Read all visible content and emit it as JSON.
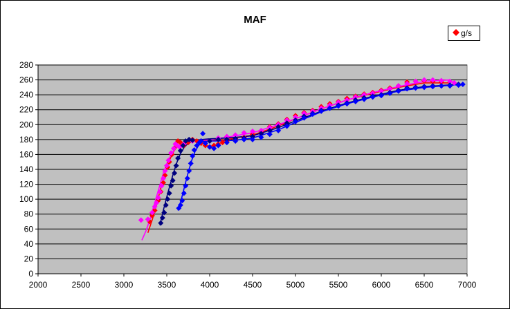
{
  "chart_data": {
    "type": "scatter",
    "title": "MAF",
    "xlabel": "",
    "ylabel": "",
    "xlim": [
      2000,
      7000
    ],
    "ylim": [
      0,
      280
    ],
    "xticks": [
      2000,
      2500,
      3000,
      3500,
      4000,
      4500,
      5000,
      5500,
      6000,
      6500,
      7000
    ],
    "yticks": [
      0,
      20,
      40,
      60,
      80,
      100,
      120,
      140,
      160,
      180,
      200,
      220,
      240,
      260,
      280
    ],
    "grid": "horizontal",
    "legend": {
      "position": "top-right",
      "entries": [
        "g/s"
      ]
    },
    "colors": {
      "plot_background": "#c0c0c0",
      "red": "#ff0000",
      "magenta": "#ff00ff",
      "navy": "#000080",
      "blue": "#0000ff"
    },
    "series": [
      {
        "name": "g/s",
        "color": "#ff0000",
        "points": [
          [
            3300,
            70
          ],
          [
            3330,
            78
          ],
          [
            3360,
            85
          ],
          [
            3400,
            98
          ],
          [
            3430,
            110
          ],
          [
            3460,
            122
          ],
          [
            3480,
            132
          ],
          [
            3510,
            143
          ],
          [
            3530,
            150
          ],
          [
            3560,
            160
          ],
          [
            3600,
            170
          ],
          [
            3630,
            178
          ],
          [
            3660,
            176
          ],
          [
            3700,
            172
          ],
          [
            3750,
            176
          ],
          [
            3800,
            180
          ],
          [
            3850,
            178
          ],
          [
            3900,
            175
          ],
          [
            3950,
            172
          ],
          [
            4000,
            170
          ],
          [
            4050,
            172
          ],
          [
            4100,
            174
          ],
          [
            4150,
            176
          ],
          [
            4200,
            178
          ],
          [
            4300,
            180
          ],
          [
            4400,
            183
          ],
          [
            4500,
            187
          ],
          [
            4600,
            191
          ],
          [
            4700,
            197
          ],
          [
            4800,
            201
          ],
          [
            4900,
            207
          ],
          [
            5000,
            212
          ],
          [
            5100,
            216
          ],
          [
            5200,
            219
          ],
          [
            5300,
            224
          ],
          [
            5400,
            228
          ],
          [
            5500,
            231
          ],
          [
            5600,
            235
          ],
          [
            5700,
            238
          ],
          [
            5800,
            241
          ],
          [
            5900,
            243
          ],
          [
            6000,
            246
          ],
          [
            6100,
            249
          ],
          [
            6200,
            252
          ],
          [
            6300,
            257
          ],
          [
            6400,
            258
          ],
          [
            6500,
            259
          ],
          [
            6600,
            258
          ],
          [
            6700,
            257
          ]
        ]
      },
      {
        "color": "#ff00ff",
        "points": [
          [
            3200,
            72
          ],
          [
            3280,
            73
          ],
          [
            3330,
            82
          ],
          [
            3360,
            90
          ],
          [
            3380,
            95
          ],
          [
            3400,
            102
          ],
          [
            3420,
            110
          ],
          [
            3440,
            118
          ],
          [
            3460,
            128
          ],
          [
            3480,
            138
          ],
          [
            3500,
            145
          ],
          [
            3520,
            152
          ],
          [
            3550,
            162
          ],
          [
            3580,
            168
          ],
          [
            3600,
            174
          ],
          [
            3620,
            172
          ],
          [
            3650,
            170
          ],
          [
            3700,
            174
          ],
          [
            3800,
            178
          ],
          [
            3900,
            178
          ],
          [
            4000,
            178
          ],
          [
            4100,
            182
          ],
          [
            4200,
            184
          ],
          [
            4300,
            186
          ],
          [
            4400,
            189
          ],
          [
            4500,
            191
          ],
          [
            4600,
            192
          ],
          [
            4700,
            196
          ],
          [
            4800,
            200
          ],
          [
            4900,
            206
          ],
          [
            5000,
            210
          ],
          [
            5100,
            215
          ],
          [
            5200,
            218
          ],
          [
            5300,
            222
          ],
          [
            5400,
            226
          ],
          [
            5500,
            230
          ],
          [
            5600,
            233
          ],
          [
            5700,
            237
          ],
          [
            5800,
            240
          ],
          [
            5900,
            242
          ],
          [
            6000,
            245
          ],
          [
            6100,
            248
          ],
          [
            6200,
            252
          ],
          [
            6300,
            255
          ],
          [
            6400,
            258
          ],
          [
            6500,
            260
          ],
          [
            6600,
            260
          ],
          [
            6700,
            259
          ],
          [
            6800,
            258
          ],
          [
            6850,
            256
          ]
        ]
      },
      {
        "color": "#000080",
        "points": [
          [
            3430,
            68
          ],
          [
            3450,
            75
          ],
          [
            3470,
            82
          ],
          [
            3490,
            92
          ],
          [
            3510,
            100
          ],
          [
            3530,
            108
          ],
          [
            3550,
            118
          ],
          [
            3570,
            125
          ],
          [
            3590,
            135
          ],
          [
            3610,
            145
          ],
          [
            3630,
            155
          ],
          [
            3660,
            165
          ],
          [
            3690,
            172
          ],
          [
            3720,
            178
          ],
          [
            3760,
            180
          ],
          [
            3800,
            179
          ],
          [
            3900,
            178
          ],
          [
            4000,
            178
          ],
          [
            4100,
            180
          ],
          [
            4200,
            180
          ],
          [
            4300,
            181
          ],
          [
            4400,
            182
          ],
          [
            4500,
            184
          ],
          [
            4600,
            188
          ],
          [
            4700,
            192
          ],
          [
            4800,
            197
          ],
          [
            4900,
            202
          ],
          [
            5000,
            206
          ],
          [
            5100,
            211
          ],
          [
            5200,
            215
          ],
          [
            5300,
            219
          ],
          [
            5400,
            222
          ],
          [
            5500,
            226
          ],
          [
            5600,
            229
          ],
          [
            5700,
            233
          ],
          [
            5800,
            236
          ],
          [
            5900,
            238
          ],
          [
            6000,
            240
          ],
          [
            6100,
            243
          ],
          [
            6200,
            246
          ],
          [
            6300,
            249
          ],
          [
            6400,
            250
          ],
          [
            6500,
            251
          ],
          [
            6600,
            252
          ],
          [
            6700,
            252
          ],
          [
            6800,
            253
          ],
          [
            6900,
            254
          ]
        ]
      },
      {
        "color": "#0000ff",
        "points": [
          [
            3640,
            88
          ],
          [
            3660,
            92
          ],
          [
            3680,
            98
          ],
          [
            3700,
            108
          ],
          [
            3720,
            118
          ],
          [
            3740,
            128
          ],
          [
            3760,
            138
          ],
          [
            3780,
            148
          ],
          [
            3800,
            158
          ],
          [
            3820,
            166
          ],
          [
            3850,
            172
          ],
          [
            3880,
            176
          ],
          [
            3900,
            178
          ],
          [
            3920,
            188
          ],
          [
            3950,
            175
          ],
          [
            4000,
            170
          ],
          [
            4050,
            168
          ],
          [
            4100,
            172
          ],
          [
            4200,
            176
          ],
          [
            4300,
            178
          ],
          [
            4400,
            180
          ],
          [
            4500,
            180
          ],
          [
            4600,
            183
          ],
          [
            4700,
            187
          ],
          [
            4800,
            192
          ],
          [
            4900,
            198
          ],
          [
            5000,
            204
          ],
          [
            5100,
            209
          ],
          [
            5200,
            214
          ],
          [
            5300,
            218
          ],
          [
            5400,
            222
          ],
          [
            5500,
            225
          ],
          [
            5600,
            228
          ],
          [
            5700,
            231
          ],
          [
            5800,
            234
          ],
          [
            5900,
            237
          ],
          [
            6000,
            239
          ],
          [
            6100,
            242
          ],
          [
            6200,
            245
          ],
          [
            6300,
            248
          ],
          [
            6400,
            249
          ],
          [
            6500,
            250
          ],
          [
            6600,
            251
          ],
          [
            6700,
            252
          ],
          [
            6800,
            252
          ],
          [
            6900,
            253
          ],
          [
            6950,
            254
          ]
        ]
      }
    ],
    "trendlines": [
      {
        "color": "#ff0000",
        "points": [
          [
            3280,
            55
          ],
          [
            3330,
            72
          ],
          [
            3380,
            92
          ],
          [
            3430,
            115
          ],
          [
            3480,
            135
          ],
          [
            3530,
            152
          ],
          [
            3580,
            164
          ],
          [
            3630,
            172
          ],
          [
            3700,
            176
          ],
          [
            3800,
            178
          ],
          [
            3900,
            178
          ],
          [
            4000,
            178
          ],
          [
            4200,
            180
          ],
          [
            4500,
            186
          ],
          [
            4800,
            198
          ],
          [
            5000,
            208
          ],
          [
            5300,
            221
          ],
          [
            5600,
            233
          ],
          [
            5900,
            242
          ],
          [
            6200,
            250
          ],
          [
            6500,
            256
          ],
          [
            6800,
            256
          ]
        ]
      },
      {
        "color": "#ff00ff",
        "points": [
          [
            3210,
            45
          ],
          [
            3260,
            58
          ],
          [
            3310,
            75
          ],
          [
            3360,
            95
          ],
          [
            3410,
            115
          ],
          [
            3460,
            135
          ],
          [
            3510,
            150
          ],
          [
            3560,
            162
          ],
          [
            3620,
            170
          ],
          [
            3700,
            175
          ],
          [
            3800,
            178
          ],
          [
            3900,
            179
          ],
          [
            4000,
            180
          ],
          [
            4200,
            183
          ],
          [
            4500,
            189
          ],
          [
            4800,
            200
          ],
          [
            5000,
            208
          ],
          [
            5300,
            221
          ],
          [
            5600,
            233
          ],
          [
            5900,
            243
          ],
          [
            6200,
            251
          ],
          [
            6500,
            258
          ],
          [
            6800,
            260
          ]
        ]
      },
      {
        "color": "#000080",
        "points": [
          [
            3420,
            65
          ],
          [
            3460,
            85
          ],
          [
            3500,
            103
          ],
          [
            3540,
            120
          ],
          [
            3580,
            136
          ],
          [
            3620,
            150
          ],
          [
            3660,
            161
          ],
          [
            3700,
            169
          ],
          [
            3750,
            175
          ],
          [
            3800,
            178
          ],
          [
            3900,
            180
          ],
          [
            4000,
            181
          ],
          [
            4200,
            182
          ],
          [
            4500,
            185
          ],
          [
            4800,
            196
          ],
          [
            5000,
            205
          ],
          [
            5300,
            218
          ],
          [
            5600,
            229
          ],
          [
            5900,
            238
          ],
          [
            6200,
            246
          ],
          [
            6500,
            251
          ],
          [
            6900,
            254
          ]
        ]
      },
      {
        "color": "#0000ff",
        "points": [
          [
            3630,
            85
          ],
          [
            3670,
            100
          ],
          [
            3710,
            118
          ],
          [
            3750,
            136
          ],
          [
            3790,
            152
          ],
          [
            3830,
            164
          ],
          [
            3870,
            172
          ],
          [
            3920,
            177
          ],
          [
            4000,
            178
          ],
          [
            4100,
            178
          ],
          [
            4300,
            179
          ],
          [
            4500,
            182
          ],
          [
            4800,
            193
          ],
          [
            5000,
            203
          ],
          [
            5300,
            217
          ],
          [
            5600,
            228
          ],
          [
            5900,
            237
          ],
          [
            6200,
            245
          ],
          [
            6500,
            250
          ],
          [
            6950,
            254
          ]
        ]
      }
    ]
  }
}
